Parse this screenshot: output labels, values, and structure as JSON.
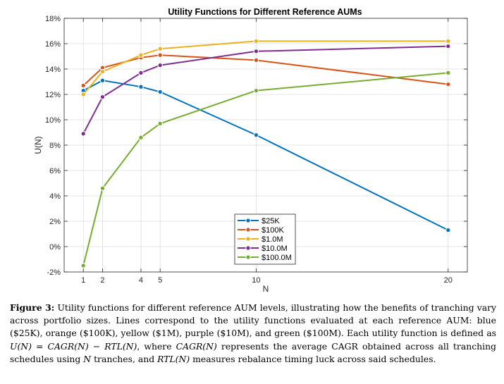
{
  "chart_data": {
    "type": "line",
    "title": "Utility Functions for Different Reference AUMs",
    "xlabel": "N",
    "ylabel": "U(N)",
    "xlim": [
      0,
      21
    ],
    "ylim": [
      -0.02,
      0.18
    ],
    "xticks": [
      1,
      2,
      4,
      5,
      10,
      20
    ],
    "yticks": [
      -0.02,
      0,
      0.02,
      0.04,
      0.06,
      0.08,
      0.1,
      0.12,
      0.14,
      0.16,
      0.18
    ],
    "ytick_labels": [
      "-2%",
      "0%",
      "2%",
      "4%",
      "6%",
      "8%",
      "10%",
      "12%",
      "14%",
      "16%",
      "18%"
    ],
    "grid": true,
    "legend_position": "bottom-center",
    "x": [
      1,
      2,
      4,
      5,
      10,
      20
    ],
    "series": [
      {
        "name": "$25K",
        "color": "#0072BD",
        "values": [
          0.123,
          0.131,
          0.126,
          0.122,
          0.088,
          0.013
        ]
      },
      {
        "name": "$100K",
        "color": "#D95319",
        "values": [
          0.127,
          0.141,
          0.149,
          0.151,
          0.147,
          0.128
        ]
      },
      {
        "name": "$1.0M",
        "color": "#EDB120",
        "values": [
          0.12,
          0.138,
          0.151,
          0.156,
          0.162,
          0.162
        ]
      },
      {
        "name": "$10.0M",
        "color": "#7E2F8E",
        "values": [
          0.089,
          0.118,
          0.137,
          0.143,
          0.154,
          0.158
        ]
      },
      {
        "name": "$100.0M",
        "color": "#77AC30",
        "values": [
          -0.015,
          0.046,
          0.086,
          0.097,
          0.123,
          0.137
        ]
      }
    ]
  },
  "caption": {
    "label": "Figure 3:",
    "text1": "Utility functions for different reference AUM levels, illustrating how the benefits of tranching vary across portfolio sizes. Lines correspond to the utility functions evaluated at each reference AUM: blue ($25K), orange ($100K), yellow ($1M), purple ($10M), and green ($100M). Each utility function is defined as ",
    "formula": "U(N) = CAGR(N) − RTL(N)",
    "text2": ", where ",
    "cagr_term": "CAGR(N)",
    "text3": " represents the average CAGR obtained across all tranching schedules using ",
    "n_term": "N",
    "text4": " tranches, and ",
    "rtl_term": "RTL(N)",
    "text5": " measures rebalance timing luck across said schedules."
  }
}
